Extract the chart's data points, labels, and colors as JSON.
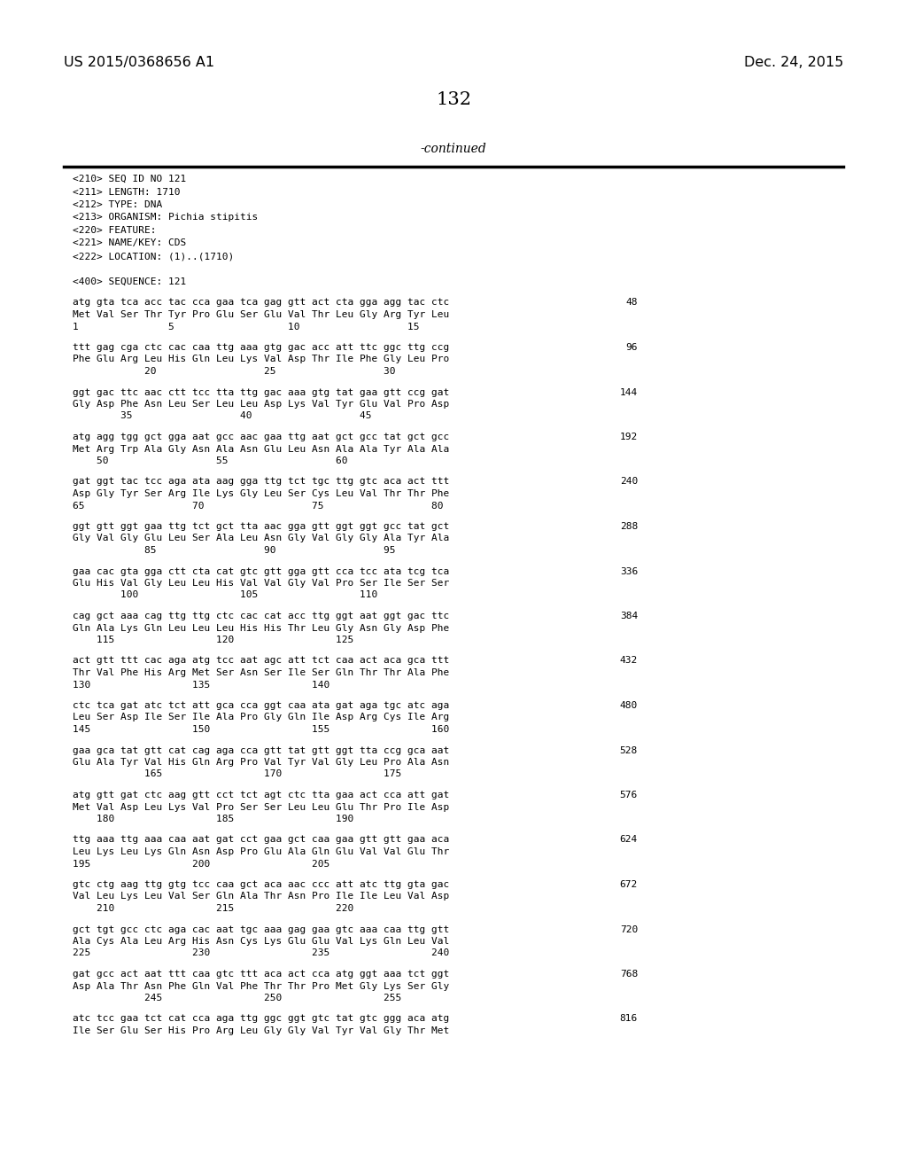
{
  "header_left": "US 2015/0368656 A1",
  "header_right": "Dec. 24, 2015",
  "page_number": "132",
  "continued_text": "-continued",
  "bg_color": "#ffffff",
  "text_color": "#000000",
  "font_size_header": 11.5,
  "font_size_page": 15,
  "font_size_mono": 8.0,
  "font_size_continued": 10,
  "seq_info": [
    "<210> SEQ ID NO 121",
    "<211> LENGTH: 1710",
    "<212> TYPE: DNA",
    "<213> ORGANISM: Pichia stipitis",
    "<220> FEATURE:",
    "<221> NAME/KEY: CDS",
    "<222> LOCATION: (1)..(1710)"
  ],
  "seq_header": "<400> SEQUENCE: 121",
  "sequence_blocks": [
    {
      "dna": "atg gta tca acc tac cca gaa tca gag gtt act cta gga agg tac ctc",
      "aa": "Met Val Ser Thr Tyr Pro Glu Ser Glu Val Thr Leu Gly Arg Tyr Leu",
      "nums": "1               5                   10                  15",
      "num_right": "48"
    },
    {
      "dna": "ttt gag cga ctc cac caa ttg aaa gtg gac acc att ttc ggc ttg ccg",
      "aa": "Phe Glu Arg Leu His Gln Leu Lys Val Asp Thr Ile Phe Gly Leu Pro",
      "nums": "            20                  25                  30",
      "num_right": "96"
    },
    {
      "dna": "ggt gac ttc aac ctt tcc tta ttg gac aaa gtg tat gaa gtt ccg gat",
      "aa": "Gly Asp Phe Asn Leu Ser Leu Leu Asp Lys Val Tyr Glu Val Pro Asp",
      "nums": "        35                  40                  45",
      "num_right": "144"
    },
    {
      "dna": "atg agg tgg gct gga aat gcc aac gaa ttg aat gct gcc tat gct gcc",
      "aa": "Met Arg Trp Ala Gly Asn Ala Asn Glu Leu Asn Ala Ala Tyr Ala Ala",
      "nums": "    50                  55                  60",
      "num_right": "192"
    },
    {
      "dna": "gat ggt tac tcc aga ata aag gga ttg tct tgc ttg gtc aca act ttt",
      "aa": "Asp Gly Tyr Ser Arg Ile Lys Gly Leu Ser Cys Leu Val Thr Thr Phe",
      "nums": "65                  70                  75                  80",
      "num_right": "240"
    },
    {
      "dna": "ggt gtt ggt gaa ttg tct gct tta aac gga gtt ggt ggt gcc tat gct",
      "aa": "Gly Val Gly Glu Leu Ser Ala Leu Asn Gly Val Gly Gly Ala Tyr Ala",
      "nums": "            85                  90                  95",
      "num_right": "288"
    },
    {
      "dna": "gaa cac gta gga ctt cta cat gtc gtt gga gtt cca tcc ata tcg tca",
      "aa": "Glu His Val Gly Leu Leu His Val Val Gly Val Pro Ser Ile Ser Ser",
      "nums": "        100                 105                 110",
      "num_right": "336"
    },
    {
      "dna": "cag gct aaa cag ttg ttg ctc cac cat acc ttg ggt aat ggt gac ttc",
      "aa": "Gln Ala Lys Gln Leu Leu Leu His His Thr Leu Gly Asn Gly Asp Phe",
      "nums": "    115                 120                 125",
      "num_right": "384"
    },
    {
      "dna": "act gtt ttt cac aga atg tcc aat agc att tct caa act aca gca ttt",
      "aa": "Thr Val Phe His Arg Met Ser Asn Ser Ile Ser Gln Thr Thr Ala Phe",
      "nums": "130                 135                 140",
      "num_right": "432"
    },
    {
      "dna": "ctc tca gat atc tct att gca cca ggt caa ata gat aga tgc atc aga",
      "aa": "Leu Ser Asp Ile Ser Ile Ala Pro Gly Gln Ile Asp Arg Cys Ile Arg",
      "nums": "145                 150                 155                 160",
      "num_right": "480"
    },
    {
      "dna": "gaa gca tat gtt cat cag aga cca gtt tat gtt ggt tta ccg gca aat",
      "aa": "Glu Ala Tyr Val His Gln Arg Pro Val Tyr Val Gly Leu Pro Ala Asn",
      "nums": "            165                 170                 175",
      "num_right": "528"
    },
    {
      "dna": "atg gtt gat ctc aag gtt cct tct agt ctc tta gaa act cca att gat",
      "aa": "Met Val Asp Leu Lys Val Pro Ser Ser Leu Leu Glu Thr Pro Ile Asp",
      "nums": "    180                 185                 190",
      "num_right": "576"
    },
    {
      "dna": "ttg aaa ttg aaa caa aat gat cct gaa gct caa gaa gtt gtt gaa aca",
      "aa": "Leu Lys Leu Lys Gln Asn Asp Pro Glu Ala Gln Glu Val Val Glu Thr",
      "nums": "195                 200                 205",
      "num_right": "624"
    },
    {
      "dna": "gtc ctg aag ttg gtg tcc caa gct aca aac ccc att atc ttg gta gac",
      "aa": "Val Leu Lys Leu Val Ser Gln Ala Thr Asn Pro Ile Ile Leu Val Asp",
      "nums": "    210                 215                 220",
      "num_right": "672"
    },
    {
      "dna": "gct tgt gcc ctc aga cac aat tgc aaa gag gaa gtc aaa caa ttg gtt",
      "aa": "Ala Cys Ala Leu Arg His Asn Cys Lys Glu Glu Val Lys Gln Leu Val",
      "nums": "225                 230                 235                 240",
      "num_right": "720"
    },
    {
      "dna": "gat gcc act aat ttt caa gtc ttt aca act cca atg ggt aaa tct ggt",
      "aa": "Asp Ala Thr Asn Phe Gln Val Phe Thr Thr Pro Met Gly Lys Ser Gly",
      "nums": "            245                 250                 255",
      "num_right": "768"
    },
    {
      "dna": "atc tcc gaa tct cat cca aga ttg ggc ggt gtc tat gtc ggg aca atg",
      "aa": "Ile Ser Glu Ser His Pro Arg Leu Gly Gly Val Tyr Val Gly Thr Met",
      "nums": "",
      "num_right": "816"
    }
  ]
}
